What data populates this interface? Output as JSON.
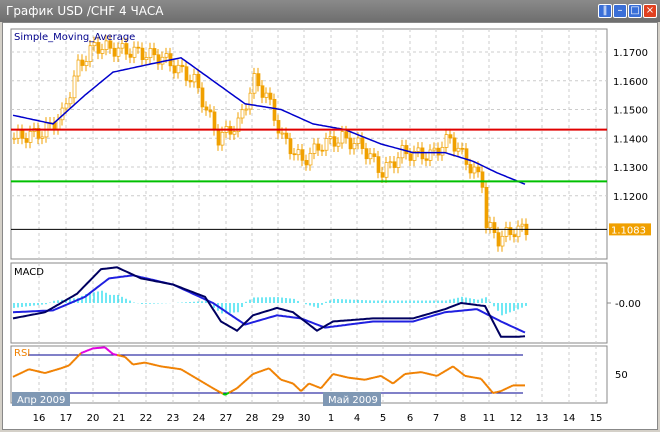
{
  "window": {
    "title": "График USD /CHF  4 ЧАСА",
    "buttons": [
      "pause",
      "minimize",
      "maximize",
      "close"
    ]
  },
  "colors": {
    "candles": "#f0a000",
    "sma": "#0000cc",
    "resistance": "#e00000",
    "support": "#00c000",
    "current_line": "#000000",
    "macd_hist": "#40e0f0",
    "macd_main": "#000060",
    "macd_signal": "#2020e0",
    "rsi": "#f08000",
    "rsi_overbought": "#e000e0",
    "rsi_oversold": "#00d000",
    "rsi_levels": "#000090",
    "price_badge": "#f0a000",
    "date_badge": "#7f98b4"
  },
  "chart_data": [
    {
      "type": "line",
      "panel": "main",
      "title": "Simple_Moving_Average",
      "yticks": [
        "1.1700",
        "1.1600",
        "1.1500",
        "1.1400",
        "1.1300",
        "1.1200"
      ],
      "current_price": "1.1083",
      "ylim": [
        1.098,
        1.178
      ],
      "levels": {
        "resistance": 1.143,
        "support": 1.125,
        "current": 1.1083
      },
      "price_path": [
        [
          0,
          1.14
        ],
        [
          7,
          1.142
        ],
        [
          12,
          1.148
        ],
        [
          16,
          1.165
        ],
        [
          20,
          1.172
        ],
        [
          30,
          1.17
        ],
        [
          37,
          1.168
        ],
        [
          45,
          1.16
        ],
        [
          51,
          1.14
        ],
        [
          56,
          1.145
        ],
        [
          60,
          1.16
        ],
        [
          63,
          1.155
        ],
        [
          67,
          1.14
        ],
        [
          72,
          1.132
        ],
        [
          77,
          1.138
        ],
        [
          82,
          1.14
        ],
        [
          87,
          1.137
        ],
        [
          92,
          1.128
        ],
        [
          97,
          1.135
        ],
        [
          104,
          1.134
        ],
        [
          109,
          1.14
        ],
        [
          114,
          1.13
        ],
        [
          117,
          1.125
        ],
        [
          118,
          1.11
        ],
        [
          121,
          1.105
        ],
        [
          125,
          1.108
        ],
        [
          128,
          1.1083
        ]
      ],
      "sma_path": [
        [
          0,
          1.148
        ],
        [
          10,
          1.145
        ],
        [
          18,
          1.155
        ],
        [
          25,
          1.163
        ],
        [
          35,
          1.166
        ],
        [
          42,
          1.168
        ],
        [
          50,
          1.16
        ],
        [
          58,
          1.152
        ],
        [
          67,
          1.15
        ],
        [
          75,
          1.145
        ],
        [
          83,
          1.143
        ],
        [
          92,
          1.138
        ],
        [
          100,
          1.135
        ],
        [
          108,
          1.135
        ],
        [
          115,
          1.132
        ],
        [
          121,
          1.128
        ],
        [
          128,
          1.124
        ]
      ]
    },
    {
      "type": "line",
      "panel": "macd",
      "title": "MACD",
      "yticks": [
        "-0.00"
      ],
      "ylim": [
        -0.0065,
        0.0065
      ],
      "main": [
        [
          0,
          -0.0025
        ],
        [
          8,
          -0.0015
        ],
        [
          16,
          0.0015
        ],
        [
          22,
          0.0055
        ],
        [
          26,
          0.0058
        ],
        [
          32,
          0.004
        ],
        [
          40,
          0.003
        ],
        [
          48,
          0.001
        ],
        [
          52,
          -0.003
        ],
        [
          56,
          -0.0045
        ],
        [
          60,
          -0.002
        ],
        [
          66,
          -0.0008
        ],
        [
          70,
          -0.0015
        ],
        [
          76,
          -0.0045
        ],
        [
          80,
          -0.003
        ],
        [
          90,
          -0.0025
        ],
        [
          100,
          -0.0025
        ],
        [
          108,
          -0.001
        ],
        [
          112,
          0.0
        ],
        [
          118,
          -0.0005
        ],
        [
          122,
          -0.0055
        ],
        [
          126,
          -0.0055
        ],
        [
          128,
          -0.0054
        ]
      ],
      "signal": [
        [
          0,
          -0.0015
        ],
        [
          10,
          -0.0012
        ],
        [
          18,
          0.001
        ],
        [
          24,
          0.004
        ],
        [
          30,
          0.0045
        ],
        [
          40,
          0.003
        ],
        [
          50,
          0.0
        ],
        [
          58,
          -0.0035
        ],
        [
          66,
          -0.002
        ],
        [
          72,
          -0.0025
        ],
        [
          78,
          -0.004
        ],
        [
          90,
          -0.003
        ],
        [
          100,
          -0.003
        ],
        [
          108,
          -0.0015
        ],
        [
          116,
          -0.001
        ],
        [
          122,
          -0.003
        ],
        [
          128,
          -0.0048
        ]
      ]
    },
    {
      "type": "line",
      "panel": "rsi",
      "title": "RSI",
      "yticks": [
        "50"
      ],
      "ylim": [
        15,
        90
      ],
      "levels": [
        70,
        30
      ],
      "rsi": [
        [
          0,
          47
        ],
        [
          4,
          55
        ],
        [
          8,
          51
        ],
        [
          12,
          56
        ],
        [
          14,
          59
        ],
        [
          17,
          72
        ],
        [
          20,
          77
        ],
        [
          23,
          78
        ],
        [
          25,
          71
        ],
        [
          28,
          68
        ],
        [
          30,
          60
        ],
        [
          33,
          62
        ],
        [
          37,
          58
        ],
        [
          42,
          55
        ],
        [
          46,
          45
        ],
        [
          50,
          35
        ],
        [
          53,
          28
        ],
        [
          56,
          35
        ],
        [
          60,
          50
        ],
        [
          64,
          56
        ],
        [
          67,
          44
        ],
        [
          70,
          40
        ],
        [
          72,
          32
        ],
        [
          74,
          40
        ],
        [
          77,
          35
        ],
        [
          80,
          50
        ],
        [
          84,
          46
        ],
        [
          88,
          44
        ],
        [
          92,
          48
        ],
        [
          95,
          40
        ],
        [
          98,
          50
        ],
        [
          102,
          52
        ],
        [
          106,
          48
        ],
        [
          110,
          58
        ],
        [
          113,
          48
        ],
        [
          117,
          45
        ],
        [
          120,
          30
        ],
        [
          122,
          32
        ],
        [
          125,
          38
        ],
        [
          128,
          38
        ]
      ]
    },
    {
      "type": "axis",
      "panel": "dates",
      "ticks": [
        "16",
        "17",
        "20",
        "21",
        "22",
        "23",
        "24",
        "27",
        "28",
        "29",
        "30",
        "1",
        "4",
        "5",
        "6",
        "7",
        "8",
        "11",
        "12",
        "13",
        "14",
        "15"
      ],
      "month_badges": [
        "Апр 2009",
        "Май 2009"
      ]
    }
  ]
}
